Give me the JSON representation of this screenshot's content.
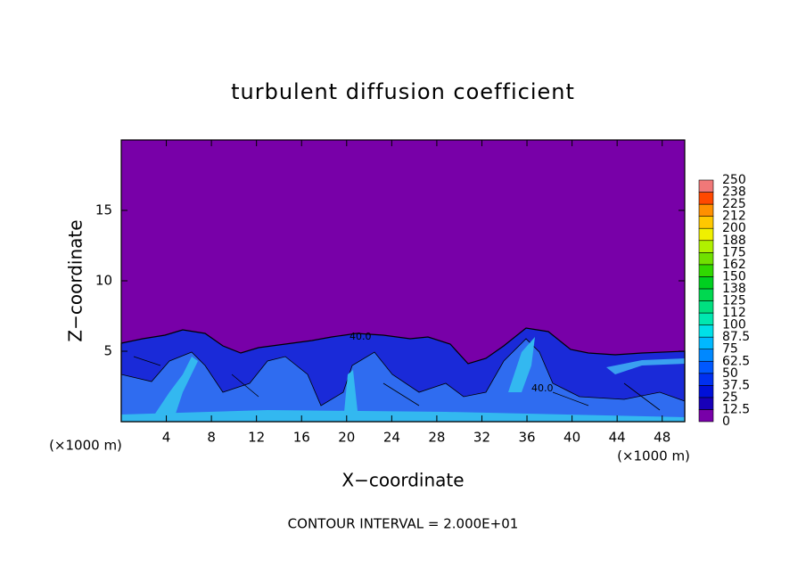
{
  "chart_data": {
    "type": "contour",
    "title": "turbulent diffusion coefficient",
    "xlabel": "X−coordinate",
    "ylabel": "Z−coordinate",
    "x_unit": "(×1000 m)",
    "y_unit": "(×1000 m)",
    "xlim": [
      0,
      50
    ],
    "ylim": [
      0,
      20
    ],
    "xticks": [
      4,
      8,
      12,
      16,
      20,
      24,
      28,
      32,
      36,
      40,
      44,
      48
    ],
    "yticks": [
      5,
      10,
      15
    ],
    "footnote": "CONTOUR INTERVAL = 2.000E+01",
    "contour_labels": [
      "40.0",
      "40.0"
    ],
    "colorbar": {
      "levels": [
        0,
        12.5,
        25,
        37.5,
        50,
        62.5,
        75,
        87.5,
        100,
        112,
        125,
        138,
        150,
        162,
        175,
        188,
        200,
        212,
        225,
        238,
        250
      ],
      "colors": [
        "#7800a8",
        "#1800b8",
        "#0010d8",
        "#0030f0",
        "#0058ff",
        "#0088ff",
        "#00b8ff",
        "#00e0e8",
        "#00e8b0",
        "#00e080",
        "#00d850",
        "#00d020",
        "#30d800",
        "#70e000",
        "#b0f000",
        "#f0f000",
        "#ffc800",
        "#ff9000",
        "#ff4800",
        "#f07878"
      ]
    }
  }
}
